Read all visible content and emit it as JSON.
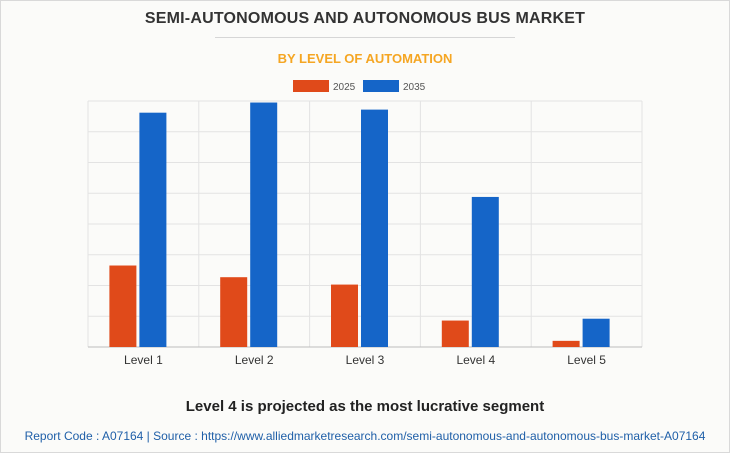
{
  "colors": {
    "title": "#333333",
    "subtitle": "#f5a623",
    "series_2025": "#e04a1a",
    "series_2035": "#1565c8",
    "source": "#1f5fa8",
    "grid": "#e3e3e3"
  },
  "chart_data": {
    "type": "bar",
    "title": "SEMI-AUTONOMOUS AND AUTONOMOUS BUS MARKET",
    "subtitle": "BY LEVEL OF AUTOMATION",
    "categories": [
      "Level 1",
      "Level 2",
      "Level 3",
      "Level 4",
      "Level 5"
    ],
    "series": [
      {
        "name": "2025",
        "values": [
          2.65,
          2.27,
          2.03,
          0.86,
          0.2
        ]
      },
      {
        "name": "2035",
        "values": [
          7.62,
          7.95,
          7.72,
          4.88,
          0.92
        ]
      }
    ],
    "ylim": [
      0,
      8
    ],
    "grid": true,
    "legend": "top-center",
    "xlabel": "",
    "ylabel": ""
  },
  "footnote": "Level 4 is projected as the most lucrative segment",
  "source_line": "Report Code : A07164  |  Source : https://www.alliedmarketresearch.com/semi-autonomous-and-autonomous-bus-market-A07164"
}
